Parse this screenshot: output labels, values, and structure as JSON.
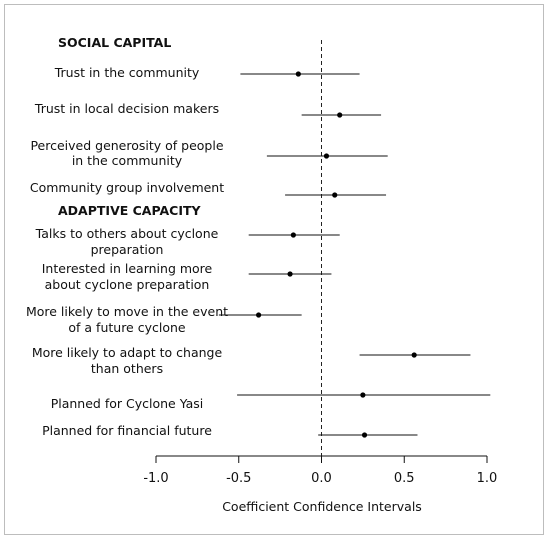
{
  "chart_data": {
    "type": "forest",
    "xlabel": "Coefficient Confidence Intervals",
    "xlim": [
      -1.0,
      1.0
    ],
    "xticks": [
      "-1.0",
      "-0.5",
      "0.0",
      "0.5",
      "1.0"
    ],
    "reference_line": 0,
    "sections": [
      {
        "title": "SOCIAL CAPITAL",
        "items": [
          {
            "label": [
              "Trust in the community"
            ],
            "estimate": -0.14,
            "lower": -0.49,
            "upper": 0.23
          },
          {
            "label": [
              "Trust in local decision makers"
            ],
            "estimate": 0.11,
            "lower": -0.12,
            "upper": 0.36
          },
          {
            "label": [
              "Perceived generosity of people",
              "in the community"
            ],
            "estimate": 0.03,
            "lower": -0.33,
            "upper": 0.4
          },
          {
            "label": [
              "Community group involvement"
            ],
            "estimate": 0.08,
            "lower": -0.22,
            "upper": 0.39
          }
        ]
      },
      {
        "title": "ADAPTIVE CAPACITY",
        "items": [
          {
            "label": [
              "Talks to others about cyclone",
              "preparation"
            ],
            "estimate": -0.17,
            "lower": -0.44,
            "upper": 0.11
          },
          {
            "label": [
              "Interested in learning more",
              "about cyclone preparation"
            ],
            "estimate": -0.19,
            "lower": -0.44,
            "upper": 0.06
          },
          {
            "label": [
              "More likely to move in the event",
              "of a future cyclone"
            ],
            "estimate": -0.38,
            "lower": -0.62,
            "upper": -0.12
          },
          {
            "label": [
              "More likely to adapt to change",
              "than others"
            ],
            "estimate": 0.56,
            "lower": 0.23,
            "upper": 0.9
          },
          {
            "label": [
              "Planned for Cyclone Yasi"
            ],
            "estimate": 0.25,
            "lower": -0.51,
            "upper": 1.02
          },
          {
            "label": [
              "Planned for financial future"
            ],
            "estimate": 0.26,
            "lower": -0.02,
            "upper": 0.58
          }
        ]
      }
    ]
  }
}
